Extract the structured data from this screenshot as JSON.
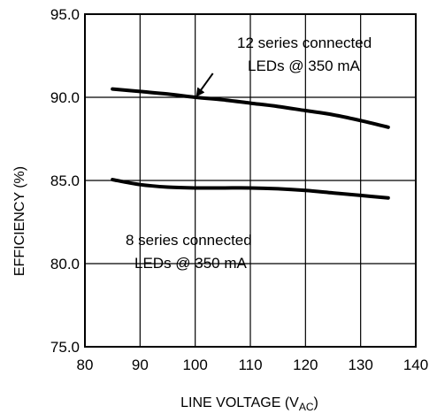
{
  "chart_data": {
    "type": "line",
    "title": "",
    "xlabel": "LINE VOLTAGE (V",
    "xlabel_sub": "AC",
    "xlabel_close": ")",
    "ylabel": "EFFICIENCY (%)",
    "xlim": [
      80,
      140
    ],
    "ylim": [
      75,
      95
    ],
    "x_ticks": [
      80,
      90,
      100,
      110,
      120,
      130,
      140
    ],
    "x_tick_labels": [
      "80",
      "90",
      "100",
      "110",
      "120",
      "130",
      "140"
    ],
    "y_ticks": [
      75,
      80,
      85,
      90,
      95
    ],
    "y_tick_labels": [
      "75.0",
      "80.0",
      "85.0",
      "90.0",
      "95.0"
    ],
    "grid": true,
    "series": [
      {
        "x": [
          85,
          90,
          95,
          100,
          105,
          110,
          115,
          120,
          125,
          130,
          135
        ],
        "y": [
          90.5,
          90.35,
          90.2,
          90.0,
          89.85,
          89.65,
          89.45,
          89.2,
          88.95,
          88.6,
          88.2
        ]
      },
      {
        "x": [
          85,
          90,
          95,
          100,
          105,
          110,
          115,
          120,
          125,
          130,
          135
        ],
        "y": [
          85.05,
          84.75,
          84.6,
          84.55,
          84.55,
          84.55,
          84.5,
          84.4,
          84.25,
          84.1,
          83.95
        ]
      }
    ],
    "annotations": [
      {
        "line1": "12 series connected",
        "line2": "LEDs @ 350 mA",
        "arrow_to": [
          100,
          89.95
        ]
      },
      {
        "line1": "8 series connected",
        "line2": "LEDs @ 350 mA"
      }
    ]
  }
}
